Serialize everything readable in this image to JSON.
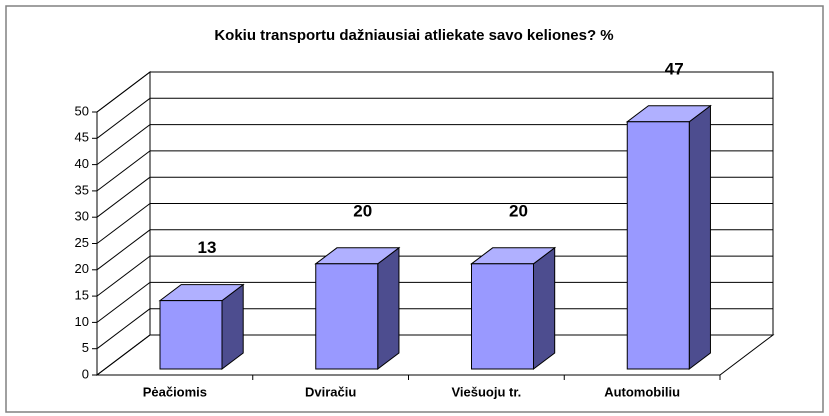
{
  "chart_data": {
    "type": "bar3d",
    "title": "Kokiu transportu dažniausiai atliekate savo keliones? %",
    "categories": [
      "Pėačiomis",
      "Dviračiu",
      "Viešuoju tr.",
      "Automobiliu"
    ],
    "values": [
      13,
      20,
      20,
      47
    ],
    "color": "#9999ff",
    "ylim": [
      0,
      50
    ],
    "yticks": [
      0,
      5,
      10,
      15,
      20,
      25,
      30,
      35,
      40,
      45,
      50
    ],
    "grid": true
  }
}
